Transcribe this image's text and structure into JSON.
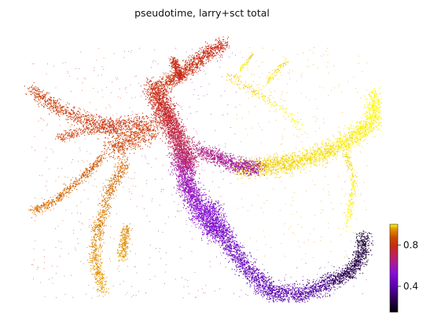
{
  "chart_data": {
    "type": "scatter",
    "title": "pseudotime, larry+sct total",
    "xlabel": "",
    "ylabel": "",
    "axes_visible": false,
    "colormap": "gnuplot",
    "colorbar": {
      "location": "bottom-right",
      "range": [
        0.15,
        1.0
      ],
      "ticks": [
        0.4,
        0.8
      ],
      "tick_labels": [
        "0.4",
        "0.8"
      ],
      "stops": [
        {
          "value": 0.0,
          "color": "#000000"
        },
        {
          "value": 0.3,
          "color": "#5b00b0"
        },
        {
          "value": 0.45,
          "color": "#8a0fd8"
        },
        {
          "value": 0.6,
          "color": "#b51f7a"
        },
        {
          "value": 0.75,
          "color": "#c8281a"
        },
        {
          "value": 0.85,
          "color": "#cc4a00"
        },
        {
          "value": 0.95,
          "color": "#e49a00"
        },
        {
          "value": 1.0,
          "color": "#ffff00"
        }
      ]
    },
    "clusters": [
      {
        "region": "bottom-right tip",
        "pseudotime": 0.15
      },
      {
        "region": "bottom arc",
        "pseudotime": 0.32
      },
      {
        "region": "left lobe",
        "pseudotime": 0.45
      },
      {
        "region": "central stem",
        "pseudotime": 0.7
      },
      {
        "region": "upper branch",
        "pseudotime": 0.78
      },
      {
        "region": "left fan",
        "pseudotime": 0.8
      },
      {
        "region": "lower-left branches",
        "pseudotime": 0.92
      },
      {
        "region": "right band",
        "pseudotime": 1.0
      }
    ]
  }
}
